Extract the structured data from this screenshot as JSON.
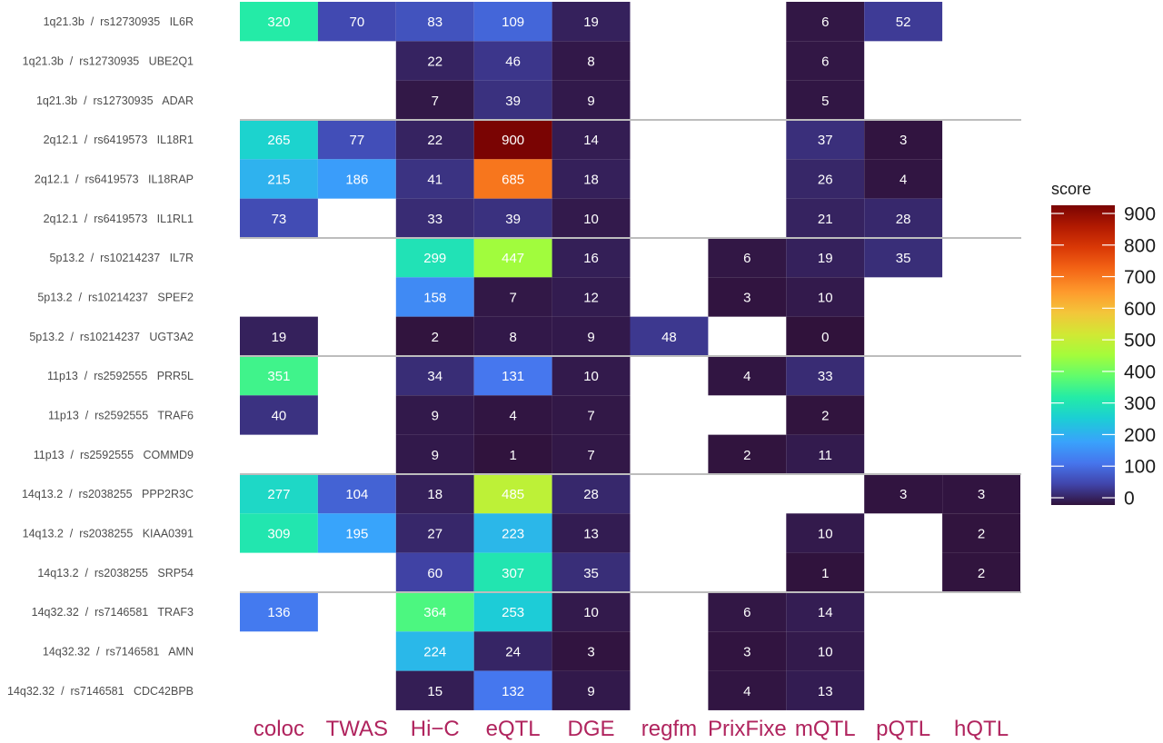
{
  "chart_data": {
    "type": "heatmap",
    "columns": [
      "coloc",
      "TWAS",
      "Hi−C",
      "eQTL",
      "DGE",
      "regfm",
      "PrixFixe",
      "mQTL",
      "pQTL",
      "hQTL"
    ],
    "rows": [
      {
        "label": "1q21.3b  /  rs12730935   IL6R",
        "values": [
          320,
          70,
          83,
          109,
          19,
          null,
          null,
          6,
          52,
          null
        ]
      },
      {
        "label": "1q21.3b  /  rs12730935   UBE2Q1",
        "values": [
          null,
          null,
          22,
          46,
          8,
          null,
          null,
          6,
          null,
          null
        ]
      },
      {
        "label": "1q21.3b  /  rs12730935   ADAR",
        "values": [
          null,
          null,
          7,
          39,
          9,
          null,
          null,
          5,
          null,
          null
        ]
      },
      {
        "label": "2q12.1  /  rs6419573   IL18R1",
        "values": [
          265,
          77,
          22,
          900,
          14,
          null,
          null,
          37,
          3,
          null
        ]
      },
      {
        "label": "2q12.1  /  rs6419573   IL18RAP",
        "values": [
          215,
          186,
          41,
          685,
          18,
          null,
          null,
          26,
          4,
          null
        ]
      },
      {
        "label": "2q12.1  /  rs6419573   IL1RL1",
        "values": [
          73,
          null,
          33,
          39,
          10,
          null,
          null,
          21,
          28,
          null
        ]
      },
      {
        "label": "5p13.2  /  rs10214237   IL7R",
        "values": [
          null,
          null,
          299,
          447,
          16,
          null,
          6,
          19,
          35,
          null
        ]
      },
      {
        "label": "5p13.2  /  rs10214237   SPEF2",
        "values": [
          null,
          null,
          158,
          7,
          12,
          null,
          3,
          10,
          null,
          null
        ]
      },
      {
        "label": "5p13.2  /  rs10214237   UGT3A2",
        "values": [
          19,
          null,
          2,
          8,
          9,
          48,
          null,
          0,
          null,
          null
        ]
      },
      {
        "label": "11p13  /  rs2592555   PRR5L",
        "values": [
          351,
          null,
          34,
          131,
          10,
          null,
          4,
          33,
          null,
          null
        ]
      },
      {
        "label": "11p13  /  rs2592555   TRAF6",
        "values": [
          40,
          null,
          9,
          4,
          7,
          null,
          null,
          2,
          null,
          null
        ]
      },
      {
        "label": "11p13  /  rs2592555   COMMD9",
        "values": [
          null,
          null,
          9,
          1,
          7,
          null,
          2,
          11,
          null,
          null
        ]
      },
      {
        "label": "14q13.2  /  rs2038255   PPP2R3C",
        "values": [
          277,
          104,
          18,
          485,
          28,
          null,
          null,
          null,
          3,
          3
        ]
      },
      {
        "label": "14q13.2  /  rs2038255   KIAA0391",
        "values": [
          309,
          195,
          27,
          223,
          13,
          null,
          null,
          10,
          null,
          2
        ]
      },
      {
        "label": "14q13.2  /  rs2038255   SRP54",
        "values": [
          null,
          null,
          60,
          307,
          35,
          null,
          null,
          1,
          null,
          2
        ]
      },
      {
        "label": "14q32.32  /  rs7146581   TRAF3",
        "values": [
          136,
          null,
          364,
          253,
          10,
          null,
          6,
          14,
          null,
          null
        ]
      },
      {
        "label": "14q32.32  /  rs7146581   AMN",
        "values": [
          null,
          null,
          224,
          24,
          3,
          null,
          3,
          10,
          null,
          null
        ]
      },
      {
        "label": "14q32.32  /  rs7146581   CDC42BPB",
        "values": [
          null,
          null,
          15,
          132,
          9,
          null,
          4,
          13,
          null,
          null
        ]
      }
    ],
    "group_separators_after_row": [
      2,
      5,
      8,
      11,
      14
    ],
    "legend": {
      "title": "score",
      "range": [
        0,
        900
      ],
      "ticks": [
        0,
        100,
        200,
        300,
        400,
        500,
        600,
        700,
        800,
        900
      ],
      "colormap": "turbo"
    },
    "colors": {
      "column_label": "#b0245e",
      "row_label": "#4d4d4d",
      "separator": "#bdbdbd",
      "cell_text": "#ffffff"
    }
  }
}
